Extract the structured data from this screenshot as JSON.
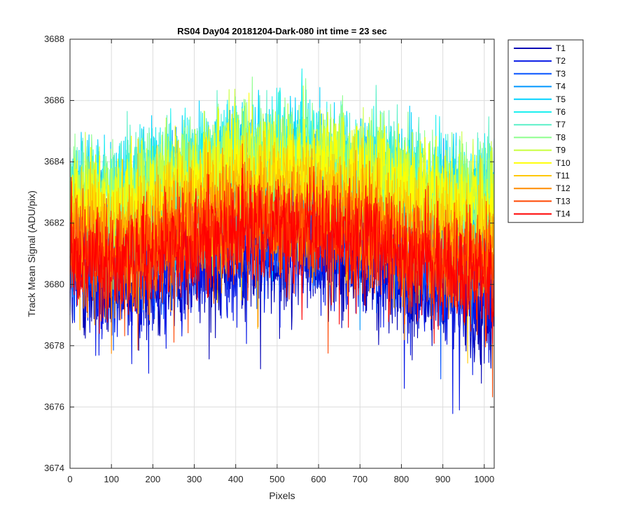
{
  "chart_data": {
    "type": "line",
    "title": "RS04 Day04 20181204-Dark-080 int time = 23 sec",
    "xlabel": "Pixels",
    "ylabel": "Track Mean Signal (ADU/pix)",
    "xlim": [
      0,
      1024
    ],
    "ylim": [
      3674,
      3688
    ],
    "xticks": [
      0,
      100,
      200,
      300,
      400,
      500,
      600,
      700,
      800,
      900,
      1000
    ],
    "yticks": [
      3674,
      3676,
      3678,
      3680,
      3682,
      3684,
      3686,
      3688
    ],
    "grid": true,
    "legend_position": "outside-top-right",
    "series": [
      {
        "name": "T1",
        "color": "#0000b4",
        "profile": [
          [
            0,
            3680.2
          ],
          [
            100,
            3679.6
          ],
          [
            200,
            3680.0
          ],
          [
            300,
            3680.4
          ],
          [
            400,
            3680.8
          ],
          [
            500,
            3680.9
          ],
          [
            600,
            3680.8
          ],
          [
            700,
            3680.6
          ],
          [
            800,
            3680.0
          ],
          [
            900,
            3679.6
          ],
          [
            1024,
            3679.3
          ]
        ]
      },
      {
        "name": "T2",
        "color": "#0014e6",
        "profile": [
          [
            0,
            3680.4
          ],
          [
            100,
            3679.8
          ],
          [
            200,
            3680.2
          ],
          [
            300,
            3680.6
          ],
          [
            400,
            3681.0
          ],
          [
            500,
            3681.1
          ],
          [
            600,
            3681.0
          ],
          [
            700,
            3680.8
          ],
          [
            800,
            3680.2
          ],
          [
            900,
            3679.8
          ],
          [
            1024,
            3679.5
          ]
        ]
      },
      {
        "name": "T3",
        "color": "#0050ff",
        "profile": [
          [
            0,
            3681.2
          ],
          [
            100,
            3680.6
          ],
          [
            200,
            3681.0
          ],
          [
            300,
            3681.4
          ],
          [
            400,
            3681.8
          ],
          [
            500,
            3681.9
          ],
          [
            600,
            3681.8
          ],
          [
            700,
            3681.6
          ],
          [
            800,
            3681.0
          ],
          [
            900,
            3680.6
          ],
          [
            1024,
            3680.3
          ]
        ]
      },
      {
        "name": "T4",
        "color": "#0096ff",
        "profile": [
          [
            0,
            3682.4
          ],
          [
            100,
            3682.0
          ],
          [
            200,
            3682.5
          ],
          [
            300,
            3683.0
          ],
          [
            400,
            3683.3
          ],
          [
            500,
            3683.4
          ],
          [
            600,
            3683.3
          ],
          [
            700,
            3683.0
          ],
          [
            800,
            3682.6
          ],
          [
            900,
            3682.2
          ],
          [
            1024,
            3682.0
          ]
        ]
      },
      {
        "name": "T5",
        "color": "#00d2ff",
        "profile": [
          [
            0,
            3683.0
          ],
          [
            100,
            3682.7
          ],
          [
            200,
            3683.2
          ],
          [
            300,
            3683.6
          ],
          [
            400,
            3684.0
          ],
          [
            500,
            3684.1
          ],
          [
            600,
            3684.0
          ],
          [
            700,
            3683.7
          ],
          [
            800,
            3683.3
          ],
          [
            900,
            3682.9
          ],
          [
            1024,
            3682.7
          ]
        ]
      },
      {
        "name": "T6",
        "color": "#1ef0f0",
        "profile": [
          [
            0,
            3683.2
          ],
          [
            100,
            3683.0
          ],
          [
            200,
            3683.5
          ],
          [
            300,
            3683.9
          ],
          [
            400,
            3684.3
          ],
          [
            500,
            3684.4
          ],
          [
            600,
            3684.3
          ],
          [
            700,
            3684.0
          ],
          [
            800,
            3683.6
          ],
          [
            900,
            3683.2
          ],
          [
            1024,
            3683.0
          ]
        ]
      },
      {
        "name": "T7",
        "color": "#5af0c8",
        "profile": [
          [
            0,
            3683.1
          ],
          [
            100,
            3682.9
          ],
          [
            200,
            3683.4
          ],
          [
            300,
            3683.8
          ],
          [
            400,
            3684.2
          ],
          [
            500,
            3684.3
          ],
          [
            600,
            3684.2
          ],
          [
            700,
            3683.9
          ],
          [
            800,
            3683.5
          ],
          [
            900,
            3683.1
          ],
          [
            1024,
            3682.9
          ]
        ]
      },
      {
        "name": "T8",
        "color": "#8cff8c",
        "profile": [
          [
            0,
            3683.0
          ],
          [
            100,
            3682.8
          ],
          [
            200,
            3683.3
          ],
          [
            300,
            3683.7
          ],
          [
            400,
            3684.1
          ],
          [
            500,
            3684.2
          ],
          [
            600,
            3684.1
          ],
          [
            700,
            3683.8
          ],
          [
            800,
            3683.4
          ],
          [
            900,
            3683.0
          ],
          [
            1024,
            3682.8
          ]
        ]
      },
      {
        "name": "T9",
        "color": "#c8ff3c",
        "profile": [
          [
            0,
            3682.8
          ],
          [
            100,
            3682.6
          ],
          [
            200,
            3683.1
          ],
          [
            300,
            3683.5
          ],
          [
            400,
            3683.9
          ],
          [
            500,
            3684.0
          ],
          [
            600,
            3683.9
          ],
          [
            700,
            3683.6
          ],
          [
            800,
            3683.2
          ],
          [
            900,
            3682.8
          ],
          [
            1024,
            3682.6
          ]
        ]
      },
      {
        "name": "T10",
        "color": "#ffff00",
        "profile": [
          [
            0,
            3682.6
          ],
          [
            100,
            3682.4
          ],
          [
            200,
            3682.9
          ],
          [
            300,
            3683.3
          ],
          [
            400,
            3683.7
          ],
          [
            500,
            3683.8
          ],
          [
            600,
            3683.7
          ],
          [
            700,
            3683.4
          ],
          [
            800,
            3683.0
          ],
          [
            900,
            3682.6
          ],
          [
            1024,
            3682.4
          ]
        ]
      },
      {
        "name": "T11",
        "color": "#ffc800",
        "profile": [
          [
            0,
            3682.0
          ],
          [
            100,
            3681.8
          ],
          [
            200,
            3682.3
          ],
          [
            300,
            3682.7
          ],
          [
            400,
            3683.0
          ],
          [
            500,
            3683.1
          ],
          [
            600,
            3683.0
          ],
          [
            700,
            3682.7
          ],
          [
            800,
            3682.3
          ],
          [
            900,
            3681.9
          ],
          [
            1024,
            3681.6
          ]
        ]
      },
      {
        "name": "T12",
        "color": "#ff8c00",
        "profile": [
          [
            0,
            3681.4
          ],
          [
            100,
            3681.1
          ],
          [
            200,
            3681.5
          ],
          [
            300,
            3681.9
          ],
          [
            400,
            3682.2
          ],
          [
            500,
            3682.3
          ],
          [
            600,
            3682.2
          ],
          [
            700,
            3681.9
          ],
          [
            800,
            3681.5
          ],
          [
            900,
            3681.1
          ],
          [
            1024,
            3680.8
          ]
        ]
      },
      {
        "name": "T13",
        "color": "#ff4600",
        "profile": [
          [
            0,
            3681.0
          ],
          [
            100,
            3680.8
          ],
          [
            200,
            3681.2
          ],
          [
            300,
            3681.6
          ],
          [
            400,
            3681.9
          ],
          [
            500,
            3682.0
          ],
          [
            600,
            3681.9
          ],
          [
            700,
            3681.6
          ],
          [
            800,
            3681.2
          ],
          [
            900,
            3680.8
          ],
          [
            1024,
            3680.5
          ]
        ]
      },
      {
        "name": "T14",
        "color": "#ff0000",
        "profile": [
          [
            0,
            3680.8
          ],
          [
            100,
            3680.6
          ],
          [
            200,
            3681.0
          ],
          [
            300,
            3681.4
          ],
          [
            400,
            3681.7
          ],
          [
            500,
            3681.8
          ],
          [
            600,
            3681.7
          ],
          [
            700,
            3681.4
          ],
          [
            800,
            3681.0
          ],
          [
            900,
            3680.6
          ],
          [
            1024,
            3680.3
          ]
        ]
      }
    ],
    "noise_amplitude_adu": 0.9
  }
}
